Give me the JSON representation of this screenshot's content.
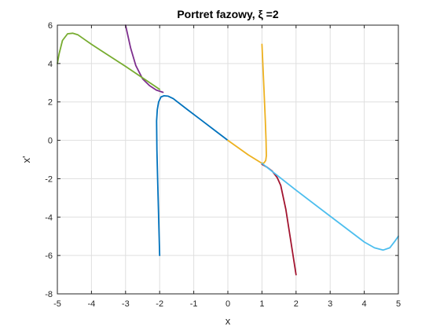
{
  "chart_data": {
    "type": "line",
    "title": "Portret fazowy, ξ =2",
    "xlabel": "x",
    "ylabel": "x'",
    "xlim": [
      -5,
      5
    ],
    "ylim": [
      -8,
      6
    ],
    "xticks": [
      "-5",
      "-4",
      "-3",
      "-2",
      "-1",
      "0",
      "1",
      "2",
      "3",
      "4",
      "5"
    ],
    "yticks": [
      "-8",
      "-6",
      "-4",
      "-2",
      "0",
      "2",
      "4",
      "6"
    ],
    "grid": true,
    "series": [
      {
        "color": "#0072BD",
        "x": [
          -2.0,
          -2.03,
          -2.06,
          -2.08,
          -2.09,
          -2.07,
          -2.03,
          -1.96,
          -1.87,
          -1.75,
          -1.6,
          -1.2,
          -0.8,
          -0.4,
          0.0
        ],
        "y": [
          -6.0,
          -4.0,
          -2.0,
          -0.5,
          1.0,
          1.6,
          2.0,
          2.26,
          2.32,
          2.3,
          2.17,
          1.62,
          1.08,
          0.54,
          0.0
        ]
      },
      {
        "color": "#EDB120",
        "x": [
          1.0,
          1.05,
          1.1,
          1.12,
          1.13,
          1.11,
          1.06,
          1.0,
          0.6,
          0.3,
          0.0
        ],
        "y": [
          5.0,
          3.0,
          1.0,
          0.0,
          -0.8,
          -1.05,
          -1.18,
          -1.2,
          -0.76,
          -0.38,
          0.0
        ]
      },
      {
        "color": "#7E2F8E",
        "x": [
          -3.0,
          -2.85,
          -2.7,
          -2.5,
          -2.3,
          -2.1,
          -1.9
        ],
        "y": [
          6.0,
          4.8,
          3.9,
          3.2,
          2.85,
          2.62,
          2.5
        ]
      },
      {
        "color": "#A2142F",
        "x": [
          2.0,
          1.85,
          1.7,
          1.55,
          1.45,
          1.3,
          1.15,
          1.0
        ],
        "y": [
          -7.0,
          -5.3,
          -3.6,
          -2.35,
          -1.95,
          -1.6,
          -1.4,
          -1.25
        ]
      },
      {
        "color": "#77AC30",
        "x": [
          -5.0,
          -4.95,
          -4.85,
          -4.7,
          -4.55,
          -4.4,
          -4.2,
          -4.0,
          -3.0,
          -2.0
        ],
        "y": [
          4.0,
          4.5,
          5.2,
          5.55,
          5.58,
          5.5,
          5.25,
          5.0,
          3.85,
          2.65
        ]
      },
      {
        "color": "#4DBEEE",
        "x": [
          1.0,
          2.0,
          3.0,
          4.0,
          4.3,
          4.55,
          4.75,
          4.9,
          5.0
        ],
        "y": [
          -1.2,
          -2.6,
          -3.95,
          -5.3,
          -5.6,
          -5.72,
          -5.6,
          -5.25,
          -5.0
        ]
      }
    ]
  }
}
